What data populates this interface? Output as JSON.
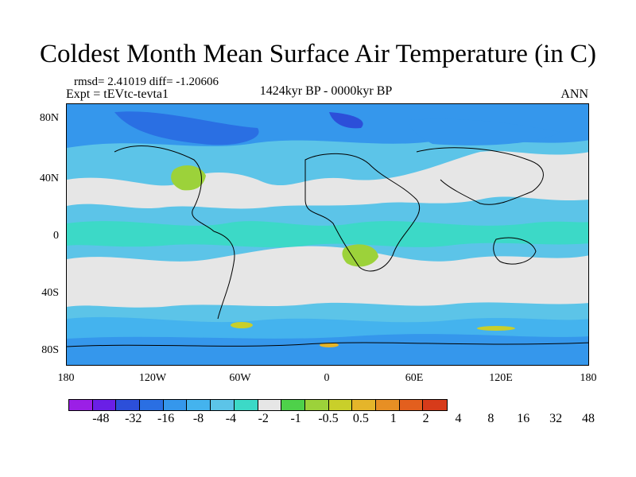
{
  "figure": {
    "title": "Coldest Month Mean Surface Air Temperature (in C)",
    "stats": "rmsd= 2.41019 diff= -1.20606",
    "experiment": "Expt = tEVtc-tevta1",
    "period": "1424kyr BP - 0000kyr BP",
    "season": "ANN"
  },
  "axes": {
    "y_ticks": [
      "80N",
      "40N",
      "0",
      "40S",
      "80S"
    ],
    "x_ticks": [
      "180",
      "120W",
      "60W",
      "0",
      "60E",
      "120E",
      "180"
    ]
  },
  "legend": {
    "labels": [
      "-48",
      "-32",
      "-16",
      "-8",
      "-4",
      "-2",
      "-1",
      "-0.5",
      "0.5",
      "1",
      "2",
      "4",
      "8",
      "16",
      "32",
      "48"
    ],
    "colors": [
      "#9b1fe6",
      "#6a1fe6",
      "#2c4fd9",
      "#2a6fe3",
      "#3597ec",
      "#44b3ee",
      "#5cc4e8",
      "#3cd9c7",
      "#e6e6e6",
      "#4ed14a",
      "#9cd23a",
      "#c9cf2a",
      "#e5b52a",
      "#e78f24",
      "#e35f1e",
      "#d73b1a"
    ]
  },
  "map_colors": {
    "ocean": "#5cc4e8",
    "neutral": "#e6e6e6",
    "slight_cool": "#3cd9c7",
    "cool": "#44b3ee",
    "cold": "#3597ec",
    "colder": "#2a6fe3",
    "coldest": "#2c4fd9",
    "warm": "#9cd23a",
    "warmer": "#c9cf2a",
    "hot": "#e5b52a"
  }
}
